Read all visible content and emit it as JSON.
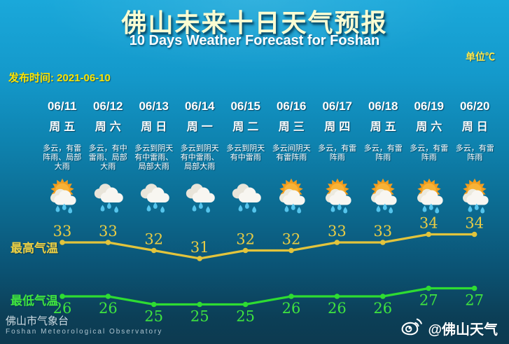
{
  "header": {
    "title": "佛山未来十日天气预报",
    "subtitle": "10 Days Weather Forecast for Foshan",
    "units_label": "单位℃",
    "publish_label": "发布时间: 2021-06-10"
  },
  "forecast": {
    "high_label": "最高气温",
    "low_label": "最低气温",
    "days": [
      {
        "date": "06/11",
        "weekday": "周五",
        "desc": "多云，有雷阵雨、局部大雨",
        "icon": "sun-cloud-rain",
        "high": 33,
        "low": 26
      },
      {
        "date": "06/12",
        "weekday": "周六",
        "desc": "多云，有中雷雨、局部大雨",
        "icon": "cloud-rain",
        "high": 33,
        "low": 26
      },
      {
        "date": "06/13",
        "weekday": "周日",
        "desc": "多云到阴天有中雷雨、局部大雨",
        "icon": "cloud-rain",
        "high": 32,
        "low": 25
      },
      {
        "date": "06/14",
        "weekday": "周一",
        "desc": "多云到阴天有中雷雨、局部大雨",
        "icon": "cloud-rain",
        "high": 31,
        "low": 25
      },
      {
        "date": "06/15",
        "weekday": "周二",
        "desc": "多云到阴天有中雷雨",
        "icon": "cloud-rain",
        "high": 32,
        "low": 25
      },
      {
        "date": "06/16",
        "weekday": "周三",
        "desc": "多云间阴天有雷阵雨",
        "icon": "sun-cloud-rain",
        "high": 32,
        "low": 26
      },
      {
        "date": "06/17",
        "weekday": "周四",
        "desc": "多云，有雷阵雨",
        "icon": "sun-cloud-rain",
        "high": 33,
        "low": 26
      },
      {
        "date": "06/18",
        "weekday": "周五",
        "desc": "多云，有雷阵雨",
        "icon": "sun-cloud-rain",
        "high": 33,
        "low": 26
      },
      {
        "date": "06/19",
        "weekday": "周六",
        "desc": "多云，有雷阵雨",
        "icon": "sun-cloud-rain",
        "high": 34,
        "low": 27
      },
      {
        "date": "06/20",
        "weekday": "周日",
        "desc": "多云，有雷阵雨",
        "icon": "sun-cloud-rain",
        "high": 34,
        "low": 27
      }
    ]
  },
  "chart_data": {
    "type": "line",
    "categories": [
      "06/11",
      "06/12",
      "06/13",
      "06/14",
      "06/15",
      "06/16",
      "06/17",
      "06/18",
      "06/19",
      "06/20"
    ],
    "series": [
      {
        "name": "最高气温",
        "values": [
          33,
          33,
          32,
          31,
          32,
          32,
          33,
          33,
          34,
          34
        ],
        "color": "#e2c43c",
        "label_color": "#e8cc45"
      },
      {
        "name": "最低气温",
        "values": [
          26,
          26,
          25,
          25,
          25,
          26,
          26,
          26,
          27,
          27
        ],
        "color": "#2edc32",
        "label_color": "#3fe43f"
      }
    ],
    "ylabel": "℃",
    "legend_position": "left",
    "grid": false
  },
  "footer": {
    "org_cn": "佛山市气象台",
    "org_en": "Foshan Meteorological Observatory",
    "weibo_handle": "@佛山天气"
  },
  "colors": {
    "background_top": "#1aa8da",
    "background_bottom": "#0d3a50",
    "title": "#fbfdd2",
    "accent_yellow": "#ffe400",
    "high_line": "#e2c43c",
    "low_line": "#2edc32",
    "sun": "#f29d1e",
    "cloud": "#f8f6f1",
    "raindrop": "#55c4ec"
  }
}
